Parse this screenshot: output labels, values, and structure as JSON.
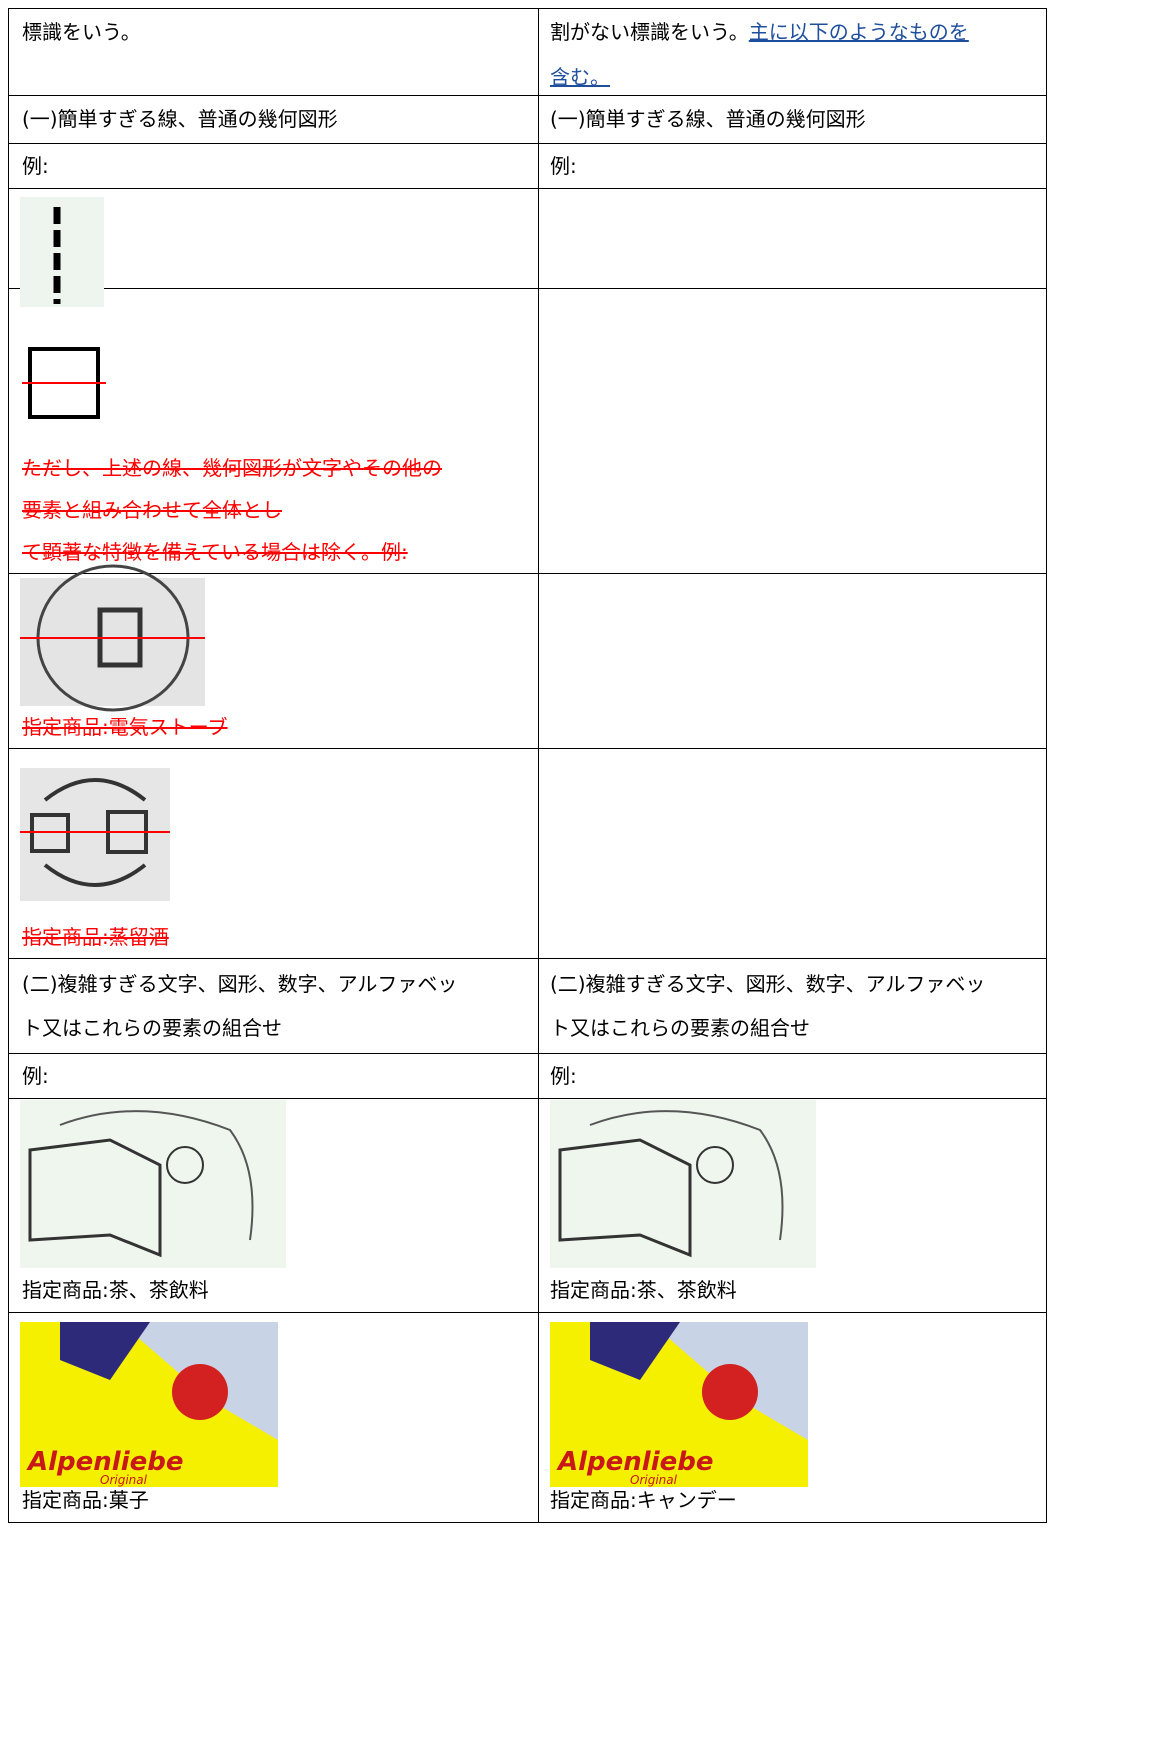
{
  "header": {
    "left": "標識をいう。",
    "right": "割がない標識をいう。",
    "right_link": [
      "主に以下のようなものを",
      "含む。"
    ]
  },
  "section1": {
    "left": "(一)簡単すぎる線、普通の幾何図形",
    "right": "(一)簡単すぎる線、普通の幾何図形",
    "example_left": "例:",
    "example_right": "例:"
  },
  "excluded_note": [
    "ただし、上述の線、幾何図形が文字やその他の",
    "要素と組み合わせて全体とし",
    "て顕著な特徴を備えている場合は除く。例:"
  ],
  "excluded_captions": [
    "指定商品:電気ストーブ",
    "指定商品:蒸留酒"
  ],
  "section2": {
    "left": [
      "(二)複雑すぎる文字、図形、数字、アルファベッ",
      "ト又はこれらの要素の組合せ"
    ],
    "right": [
      "(二)複雑すぎる文字、図形、数字、アルファベッ",
      "ト又はこれらの要素の組合せ"
    ],
    "example_left": "例:",
    "example_right": "例:"
  },
  "examples": [
    {
      "left": "指定商品:茶、茶飲料",
      "right": "指定商品:茶、茶飲料"
    },
    {
      "left": "指定商品:菓子",
      "right": "指定商品:キャンデー",
      "image_text": [
        "Alpenliebe",
        "Original"
      ]
    }
  ]
}
